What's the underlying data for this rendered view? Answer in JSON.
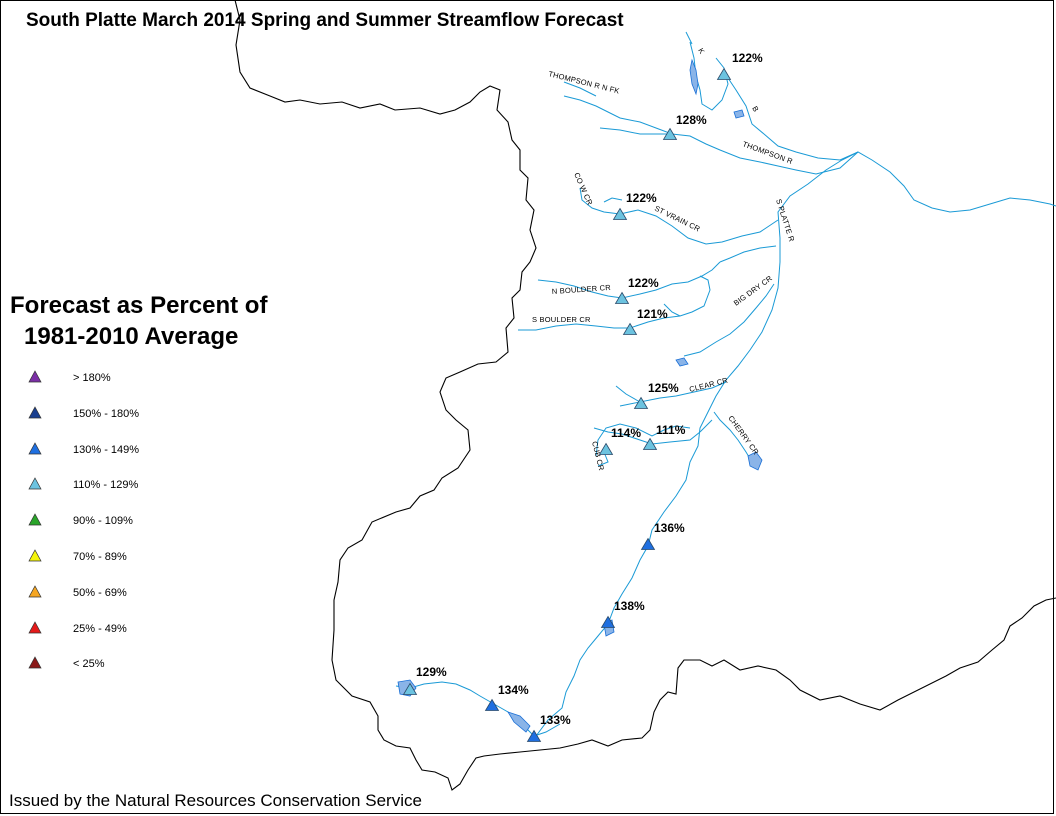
{
  "title": "South Platte March 2014 Spring and Summer Streamflow Forecast",
  "legend": {
    "title_line1": "Forecast as Percent of",
    "title_line2": "1981-2010 Average",
    "items": [
      {
        "label": "> 180%",
        "color": "#7b2fa6"
      },
      {
        "label": "150% - 180%",
        "color": "#1a3f8f"
      },
      {
        "label": "130% - 149%",
        "color": "#1f6fe0"
      },
      {
        "label": "110% - 129%",
        "color": "#6cc3e0"
      },
      {
        "label": "90% - 109%",
        "color": "#2aa52a"
      },
      {
        "label": "70% - 89%",
        "color": "#f5f50a"
      },
      {
        "label": "50% - 69%",
        "color": "#f5a623"
      },
      {
        "label": "25% - 49%",
        "color": "#e41a1a"
      },
      {
        "label": "< 25%",
        "color": "#8b1a1a"
      }
    ]
  },
  "stations": [
    {
      "pct": "122%",
      "category": "110% - 129%"
    },
    {
      "pct": "128%",
      "category": "110% - 129%"
    },
    {
      "pct": "122%",
      "category": "110% - 129%"
    },
    {
      "pct": "122%",
      "category": "110% - 129%"
    },
    {
      "pct": "121%",
      "category": "110% - 129%"
    },
    {
      "pct": "125%",
      "category": "110% - 129%"
    },
    {
      "pct": "114%",
      "category": "110% - 129%"
    },
    {
      "pct": "111%",
      "category": "110% - 129%"
    },
    {
      "pct": "136%",
      "category": "130% - 149%"
    },
    {
      "pct": "138%",
      "category": "130% - 149%"
    },
    {
      "pct": "129%",
      "category": "110% - 129%"
    },
    {
      "pct": "134%",
      "category": "130% - 149%"
    },
    {
      "pct": "133%",
      "category": "130% - 149%"
    }
  ],
  "rivers": {
    "thompson_nfk": "THOMPSON R N FK",
    "thompson": "THOMPSON R",
    "st_vrain": "ST VRAIN CR",
    "n_boulder": "N BOULDER CR",
    "s_boulder": "S BOULDER CR",
    "big_dry": "BIG DRY CR",
    "clear": "CLEAR CR",
    "cherry": "CHERRY CR",
    "s_platte": "S PLATTE R",
    "cowcr": "CO W CR",
    "cub": "CUB CR",
    "poudre_k": "K",
    "poudre_b": "B"
  },
  "colors": {
    "river": "#1a9ad6",
    "lake": "#8ab4e8",
    "boundary": "#000000"
  },
  "footer": "Issued by the Natural Resources Conservation Service"
}
